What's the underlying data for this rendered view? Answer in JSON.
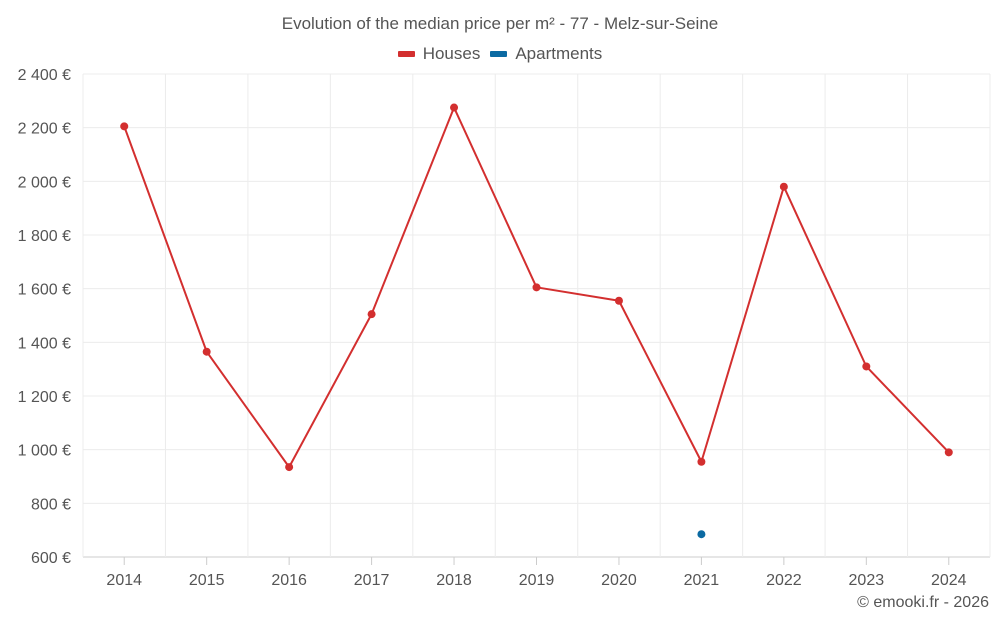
{
  "chart_data": {
    "type": "line",
    "title": "Evolution of the median price per m² - 77 - Melz-sur-Seine",
    "categories": [
      "2014",
      "2015",
      "2016",
      "2017",
      "2018",
      "2019",
      "2020",
      "2021",
      "2022",
      "2023",
      "2024"
    ],
    "ylim": [
      600,
      2400
    ],
    "yticks": [
      600,
      800,
      1000,
      1200,
      1400,
      1600,
      1800,
      2000,
      2200,
      2400
    ],
    "ytick_labels": [
      "600 €",
      "800 €",
      "1 000 €",
      "1 200 €",
      "1 400 €",
      "1 600 €",
      "1 800 €",
      "2 000 €",
      "2 200 €",
      "2 400 €"
    ],
    "grid": true,
    "legend_position": "top-center",
    "series": [
      {
        "name": "Houses",
        "color": "#d32f2f",
        "values": [
          2205,
          1365,
          935,
          1505,
          2275,
          1605,
          1555,
          955,
          1980,
          1310,
          990
        ]
      },
      {
        "name": "Apartments",
        "color": "#0b6aa2",
        "values": [
          null,
          null,
          null,
          null,
          null,
          null,
          null,
          685,
          null,
          null,
          null
        ]
      }
    ]
  },
  "credit": "© emooki.fr - 2026"
}
